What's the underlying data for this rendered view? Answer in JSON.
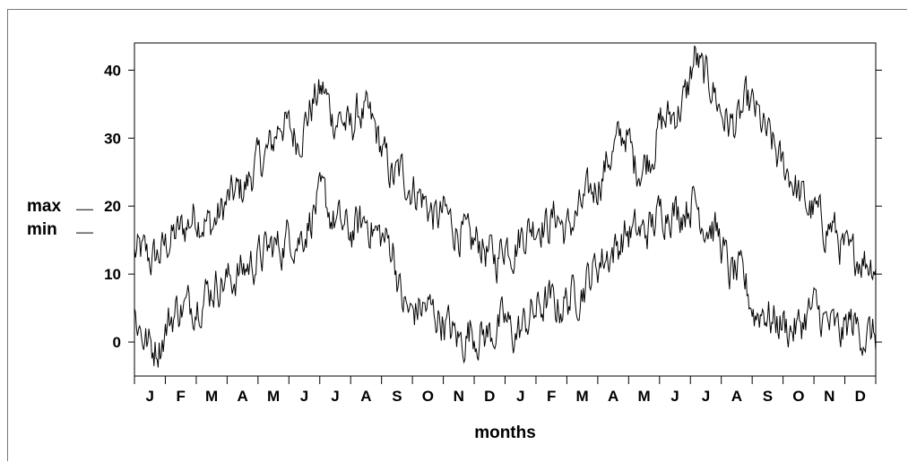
{
  "chart_data": {
    "type": "line",
    "title": "",
    "xlabel": "months",
    "ylabel": "",
    "ylim": [
      -5,
      44
    ],
    "yticks": [
      0,
      10,
      20,
      30,
      40
    ],
    "x_tick_labels": [
      "J",
      "F",
      "M",
      "A",
      "M",
      "J",
      "J",
      "A",
      "S",
      "O",
      "N",
      "D",
      "J",
      "F",
      "M",
      "A",
      "M",
      "J",
      "J",
      "A",
      "S",
      "O",
      "N",
      "D"
    ],
    "grid": false,
    "legend_position": "left",
    "legend": [
      {
        "label": "max",
        "level": 20
      },
      {
        "label": "min",
        "level": 15
      }
    ],
    "line_color": "#000000",
    "series": [
      {
        "name": "max",
        "values": [
          13,
          13,
          12,
          13,
          15,
          16,
          17,
          19,
          18,
          17,
          19,
          21,
          22,
          23,
          26,
          27,
          29,
          33,
          31,
          30,
          33,
          36,
          37,
          33,
          33,
          31,
          34,
          33,
          31,
          27,
          24,
          25,
          23,
          22,
          20,
          18,
          19,
          17,
          16,
          14,
          15,
          13,
          12,
          15,
          14,
          16,
          17,
          18,
          17,
          19,
          16,
          18,
          20,
          22,
          24,
          27,
          29,
          31,
          26,
          26,
          28,
          32,
          33,
          34,
          36,
          42,
          39,
          38,
          34,
          32,
          32,
          35,
          34,
          31,
          29,
          26,
          25,
          22,
          20,
          19,
          17,
          17,
          14,
          12,
          13,
          12,
          12
        ]
      },
      {
        "name": "min",
        "values": [
          4,
          1,
          -1,
          0,
          3,
          5,
          5,
          6,
          7,
          8,
          9,
          9,
          10,
          11,
          12,
          13,
          14,
          14,
          16,
          15,
          17,
          20,
          21,
          18,
          17,
          16,
          17,
          18,
          16,
          15,
          14,
          6,
          4,
          5,
          5,
          4,
          3,
          1,
          0,
          2,
          1,
          1,
          2,
          3,
          1,
          2,
          4,
          5,
          6,
          5,
          6,
          7,
          8,
          10,
          12,
          13,
          14,
          16,
          16,
          16,
          17,
          19,
          20,
          19,
          20,
          21,
          18,
          17,
          15,
          10,
          10,
          8,
          4,
          5,
          3,
          3,
          2,
          2,
          4,
          5,
          3,
          2,
          1,
          3,
          2,
          1,
          1
        ]
      }
    ]
  }
}
